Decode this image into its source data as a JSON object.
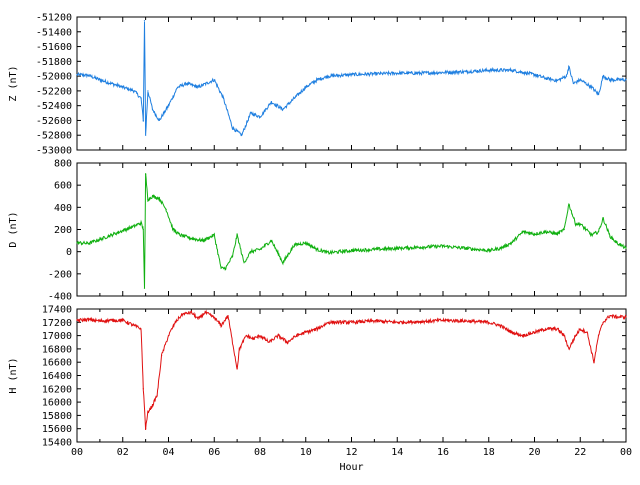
{
  "chart_data": [
    {
      "type": "line",
      "ylabel": "Z (nT)",
      "ylim": [
        -53000,
        -51200
      ],
      "yticks": [
        -51200,
        -51400,
        -51600,
        -51800,
        -52000,
        -52200,
        -52400,
        -52600,
        -52800,
        -53000
      ],
      "color": "#1f7fe0",
      "x": [
        0,
        0.5,
        1,
        1.5,
        2,
        2.5,
        2.8,
        2.9,
        2.95,
        3.0,
        3.1,
        3.3,
        3.6,
        4.0,
        4.4,
        4.8,
        5.3,
        6.0,
        6.4,
        6.8,
        7.2,
        7.6,
        8.0,
        8.5,
        9.0,
        9.5,
        10.0,
        10.5,
        11.0,
        12.0,
        13.0,
        14.0,
        15.0,
        16.0,
        17.0,
        18.0,
        19.0,
        19.5,
        20.0,
        20.5,
        21.0,
        21.4,
        21.5,
        21.7,
        22.0,
        22.5,
        22.8,
        23.0,
        23.3,
        23.7,
        24.0
      ],
      "values": [
        -51980,
        -51990,
        -52050,
        -52100,
        -52150,
        -52200,
        -52300,
        -52600,
        -51250,
        -52800,
        -52200,
        -52450,
        -52600,
        -52400,
        -52150,
        -52100,
        -52150,
        -52050,
        -52300,
        -52700,
        -52800,
        -52500,
        -52550,
        -52350,
        -52450,
        -52300,
        -52150,
        -52050,
        -52000,
        -51980,
        -51970,
        -51960,
        -51960,
        -51950,
        -51940,
        -51920,
        -51920,
        -51950,
        -51980,
        -52030,
        -52060,
        -52000,
        -51870,
        -52100,
        -52050,
        -52150,
        -52250,
        -52000,
        -52050,
        -52050,
        -52050
      ]
    },
    {
      "type": "line",
      "ylabel": "D (nT)",
      "ylim": [
        -400,
        800
      ],
      "yticks": [
        800,
        600,
        400,
        200,
        0,
        -200,
        -400
      ],
      "color": "#10b010",
      "x": [
        0,
        0.5,
        1,
        1.5,
        2,
        2.5,
        2.8,
        2.9,
        2.95,
        3.0,
        3.1,
        3.3,
        3.6,
        3.9,
        4.2,
        4.5,
        5.0,
        5.5,
        6.0,
        6.3,
        6.5,
        6.8,
        7.0,
        7.3,
        7.6,
        8.0,
        8.5,
        9.0,
        9.5,
        10.0,
        10.5,
        11.0,
        12.0,
        13.0,
        14.0,
        15.0,
        16.0,
        17.0,
        18.0,
        18.5,
        19.0,
        19.5,
        20.0,
        20.5,
        21.0,
        21.3,
        21.5,
        21.8,
        22.0,
        22.5,
        22.8,
        23.0,
        23.3,
        23.6,
        24.0
      ],
      "values": [
        80,
        75,
        110,
        150,
        190,
        230,
        260,
        200,
        -330,
        700,
        470,
        500,
        480,
        380,
        200,
        150,
        120,
        100,
        150,
        -150,
        -150,
        -40,
        150,
        -100,
        0,
        20,
        100,
        -100,
        60,
        80,
        20,
        -10,
        10,
        20,
        30,
        40,
        50,
        30,
        10,
        30,
        80,
        180,
        160,
        180,
        160,
        200,
        430,
        250,
        250,
        150,
        180,
        300,
        140,
        80,
        30
      ]
    },
    {
      "type": "line",
      "ylabel": "H (nT)",
      "xlabel": "Hour",
      "ylim": [
        15400,
        17400
      ],
      "yticks": [
        17400,
        17200,
        17000,
        16800,
        16600,
        16400,
        16200,
        16000,
        15800,
        15600,
        15400
      ],
      "color": "#e01010",
      "x": [
        0,
        0.5,
        1,
        1.5,
        2,
        2.5,
        2.8,
        2.9,
        3.0,
        3.1,
        3.3,
        3.5,
        3.7,
        4.0,
        4.3,
        4.6,
        5.0,
        5.3,
        5.6,
        6.0,
        6.3,
        6.6,
        7.0,
        7.1,
        7.4,
        7.7,
        8.0,
        8.4,
        8.8,
        9.2,
        9.6,
        10.0,
        10.5,
        11.0,
        11.5,
        12.0,
        13.0,
        14.0,
        15.0,
        16.0,
        17.0,
        18.0,
        18.5,
        19.0,
        19.5,
        20.0,
        20.5,
        21.0,
        21.3,
        21.5,
        21.8,
        22.0,
        22.3,
        22.6,
        22.8,
        23.0,
        23.3,
        23.6,
        24.0
      ],
      "values": [
        17230,
        17240,
        17220,
        17230,
        17230,
        17150,
        17100,
        16200,
        15600,
        15850,
        15950,
        16100,
        16700,
        17000,
        17200,
        17320,
        17350,
        17250,
        17350,
        17270,
        17150,
        17300,
        16500,
        16800,
        17000,
        16950,
        17000,
        16900,
        17000,
        16900,
        17000,
        17050,
        17100,
        17200,
        17200,
        17200,
        17220,
        17200,
        17210,
        17230,
        17220,
        17200,
        17150,
        17050,
        17000,
        17050,
        17100,
        17100,
        17000,
        16800,
        17000,
        17100,
        17050,
        16600,
        17000,
        17200,
        17300,
        17280,
        17280
      ]
    }
  ],
  "xticks": [
    "00",
    "02",
    "04",
    "06",
    "08",
    "10",
    "12",
    "14",
    "16",
    "18",
    "20",
    "22",
    "00"
  ],
  "xlim": [
    0,
    24
  ]
}
